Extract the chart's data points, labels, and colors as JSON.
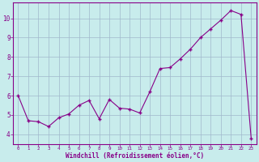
{
  "x": [
    0,
    1,
    2,
    3,
    4,
    5,
    6,
    7,
    8,
    9,
    10,
    11,
    12,
    13,
    14,
    15,
    16,
    17,
    18,
    19,
    20,
    21,
    22,
    23
  ],
  "y": [
    6.0,
    4.7,
    4.65,
    4.4,
    4.85,
    5.05,
    5.5,
    5.75,
    4.8,
    5.8,
    5.35,
    5.3,
    5.1,
    6.2,
    7.4,
    7.45,
    7.9,
    8.4,
    9.0,
    9.45,
    9.9,
    10.4,
    10.2,
    3.8
  ],
  "line_color": "#880088",
  "marker": "+",
  "marker_size": 3,
  "marker_lw": 1.0,
  "line_width": 0.8,
  "bg_color": "#c8ecec",
  "grid_color": "#a0b8cc",
  "xlabel": "Windchill (Refroidissement éolien,°C)",
  "yticks": [
    4,
    5,
    6,
    7,
    8,
    9,
    10
  ],
  "xtick_labels": [
    "0",
    "1",
    "2",
    "3",
    "4",
    "5",
    "6",
    "7",
    "8",
    "9",
    "10",
    "11",
    "12",
    "13",
    "14",
    "15",
    "16",
    "17",
    "18",
    "19",
    "20",
    "21",
    "22",
    "23"
  ],
  "ylim": [
    3.5,
    10.8
  ],
  "xlim": [
    -0.5,
    23.5
  ],
  "spine_color": "#880088",
  "tick_color": "#880088",
  "label_color": "#880088",
  "xtick_fontsize": 4.2,
  "ytick_fontsize": 5.5,
  "xlabel_fontsize": 5.5
}
